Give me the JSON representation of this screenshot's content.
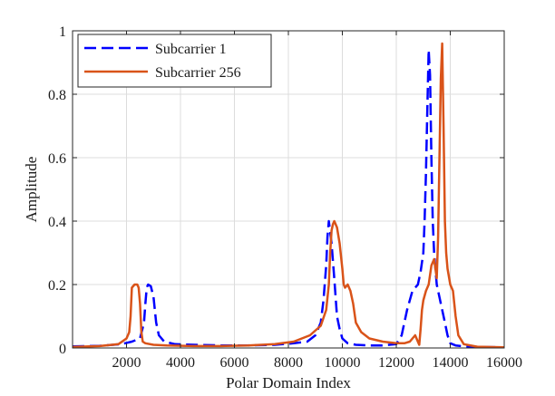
{
  "chart_data": {
    "type": "line",
    "title": "",
    "xlabel": "Polar Domain Index",
    "ylabel": "Amplitude",
    "xlim": [
      0,
      16000
    ],
    "ylim": [
      0,
      1
    ],
    "xticks": [
      2000,
      4000,
      6000,
      8000,
      10000,
      12000,
      14000,
      16000
    ],
    "yticks": [
      0,
      0.2,
      0.4,
      0.6,
      0.8,
      1
    ],
    "ytick_labels": [
      "0",
      "0.2",
      "0.4",
      "0.6",
      "0.8",
      "1"
    ],
    "grid": true,
    "legend": "top-left",
    "series": [
      {
        "name": "Subcarrier 1",
        "color": "#0000ff",
        "style": "dashed",
        "x": [
          0,
          1000,
          1800,
          2200,
          2500,
          2650,
          2700,
          2750,
          2800,
          2900,
          3000,
          3100,
          3200,
          3400,
          3800,
          4500,
          5500,
          6500,
          7500,
          8200,
          8700,
          9000,
          9200,
          9300,
          9400,
          9450,
          9500,
          9600,
          9700,
          9800,
          9900,
          10000,
          10200,
          10500,
          11000,
          11500,
          12000,
          12200,
          12400,
          12600,
          12800,
          12900,
          13000,
          13050,
          13100,
          13150,
          13200,
          13250,
          13300,
          13350,
          13400,
          13500,
          13700,
          13800,
          13900,
          14000,
          14200,
          14500,
          15000,
          16000
        ],
        "values": [
          0.005,
          0.007,
          0.012,
          0.02,
          0.03,
          0.08,
          0.14,
          0.19,
          0.2,
          0.195,
          0.16,
          0.08,
          0.04,
          0.02,
          0.012,
          0.01,
          0.008,
          0.008,
          0.01,
          0.015,
          0.02,
          0.04,
          0.08,
          0.15,
          0.26,
          0.35,
          0.4,
          0.33,
          0.22,
          0.1,
          0.06,
          0.03,
          0.015,
          0.01,
          0.008,
          0.008,
          0.012,
          0.04,
          0.12,
          0.18,
          0.2,
          0.24,
          0.3,
          0.4,
          0.55,
          0.75,
          0.94,
          0.86,
          0.6,
          0.4,
          0.3,
          0.2,
          0.12,
          0.08,
          0.04,
          0.015,
          0.008,
          0.005,
          0.003,
          0.002
        ]
      },
      {
        "name": "Subcarrier 256",
        "color": "#d95319",
        "style": "solid",
        "x": [
          0,
          1000,
          1700,
          2000,
          2100,
          2150,
          2200,
          2300,
          2400,
          2450,
          2500,
          2550,
          2600,
          2700,
          3000,
          3500,
          4500,
          5500,
          6500,
          7500,
          8200,
          8800,
          9200,
          9400,
          9500,
          9550,
          9600,
          9650,
          9700,
          9800,
          9900,
          10000,
          10050,
          10100,
          10200,
          10300,
          10400,
          10500,
          10700,
          11000,
          11500,
          12000,
          12300,
          12500,
          12700,
          12850,
          12900,
          12950,
          13000,
          13100,
          13200,
          13300,
          13400,
          13500,
          13550,
          13600,
          13650,
          13700,
          13750,
          13800,
          13850,
          13900,
          14000,
          14100,
          14200,
          14300,
          14500,
          15000,
          16000
        ],
        "values": [
          0.003,
          0.006,
          0.012,
          0.03,
          0.05,
          0.1,
          0.19,
          0.2,
          0.2,
          0.19,
          0.14,
          0.05,
          0.02,
          0.015,
          0.01,
          0.008,
          0.006,
          0.006,
          0.008,
          0.012,
          0.02,
          0.04,
          0.07,
          0.12,
          0.2,
          0.3,
          0.37,
          0.39,
          0.4,
          0.38,
          0.33,
          0.25,
          0.2,
          0.19,
          0.2,
          0.18,
          0.14,
          0.08,
          0.05,
          0.03,
          0.02,
          0.015,
          0.015,
          0.02,
          0.04,
          0.01,
          0.06,
          0.12,
          0.15,
          0.18,
          0.2,
          0.26,
          0.28,
          0.22,
          0.35,
          0.6,
          0.85,
          0.96,
          0.7,
          0.4,
          0.3,
          0.25,
          0.2,
          0.18,
          0.1,
          0.04,
          0.012,
          0.004,
          0.002
        ]
      }
    ]
  }
}
